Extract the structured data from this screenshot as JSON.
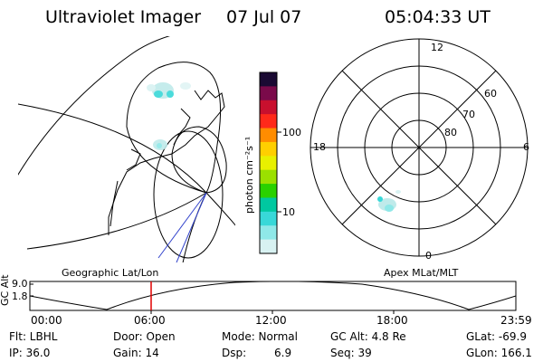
{
  "header": {
    "title": "Ultraviolet Imager",
    "date": "07 Jul 07",
    "time": "05:04:33 UT"
  },
  "colorbar": {
    "unit_label": "photon cm⁻²s⁻¹",
    "ticks": [
      "100",
      "10"
    ],
    "colors": [
      "#1a0a33",
      "#7a0a4a",
      "#c8102e",
      "#ff2a1a",
      "#ff8c00",
      "#ffcf00",
      "#e8f000",
      "#9be000",
      "#2ad100",
      "#00c8a0",
      "#38d8d8",
      "#8fe8e8",
      "#d8f2f2"
    ]
  },
  "left_map": {
    "label": "Geographic Lat/Lon"
  },
  "polar_plot": {
    "label": "Apex MLat/MLT",
    "mlt_labels": [
      "12",
      "6",
      "18",
      "0"
    ],
    "lat_labels": [
      "60",
      "70",
      "80"
    ]
  },
  "timeline": {
    "ylabel": "GC Alt",
    "y_ticks": [
      "9.0",
      "1.8"
    ],
    "x_ticks": [
      "00:00",
      "06:00",
      "12:00",
      "18:00",
      "23:59"
    ],
    "marker_time": "05:04"
  },
  "footer": {
    "row1": {
      "filter": "Flt: LBHL",
      "door": "Door: Open",
      "mode": "Mode: Normal",
      "gc_alt": "GC Alt: 4.8 Re",
      "glat": "GLat: -69.9"
    },
    "row2": {
      "ip": "IP: 36.0",
      "gain": "Gain: 14",
      "dsp_label": "Dsp:",
      "dsp_value": "6.9",
      "seq": "Seq: 39",
      "glon": "GLon: 166.1"
    }
  }
}
